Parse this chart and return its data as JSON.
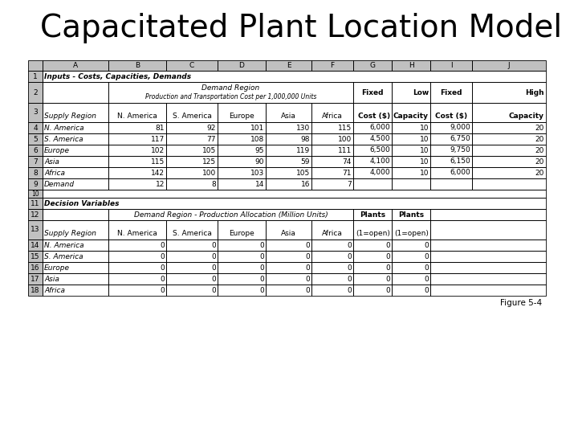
{
  "title": "Capacitated Plant Location Model",
  "figure_label": "Figure 5-4",
  "section1_label": "Inputs - Costs, Capacities, Demands",
  "section2_label": "Decision Variables",
  "demand_region_label": "Demand Region",
  "prod_trans_label": "Production and Transportation Cost per 1,000,000 Units",
  "alloc_label": "Demand Region - Production Allocation (Million Units)",
  "col_letters": [
    "A",
    "B",
    "C",
    "D",
    "E",
    "F",
    "G",
    "H",
    "I",
    "J"
  ],
  "row2_g": "Fixed",
  "row2_h": "Low",
  "row2_i": "Fixed",
  "row2_j": "High",
  "row3": [
    "Supply Region",
    "N. America",
    "S. America",
    "Europe",
    "Asia",
    "Africa",
    "Cost ($)",
    "Capacity",
    "Cost ($)",
    "Capacity"
  ],
  "row4": [
    "N. America",
    "81",
    "92",
    "101",
    "130",
    "115",
    "6,000",
    "10",
    "9,000",
    "20"
  ],
  "row5": [
    "S. America",
    "117",
    "77",
    "108",
    "98",
    "100",
    "4,500",
    "10",
    "6,750",
    "20"
  ],
  "row6": [
    "Europe",
    "102",
    "105",
    "95",
    "119",
    "111",
    "6,500",
    "10",
    "9,750",
    "20"
  ],
  "row7": [
    "Asia",
    "115",
    "125",
    "90",
    "59",
    "74",
    "4,100",
    "10",
    "6,150",
    "20"
  ],
  "row8": [
    "Africa",
    "142",
    "100",
    "103",
    "105",
    "71",
    "4,000",
    "10",
    "6,000",
    "20"
  ],
  "row9": [
    "Demand",
    "12",
    "8",
    "14",
    "16",
    "7",
    "",
    "",
    "",
    ""
  ],
  "row12_g": "Plants",
  "row12_h": "Plants",
  "row13": [
    "Supply Region",
    "N. America",
    "S. America",
    "Europe",
    "Asia",
    "Africa",
    "(1=open)",
    "(1=open)",
    "",
    ""
  ],
  "row14": [
    "N. America",
    "0",
    "0",
    "0",
    "0",
    "0",
    "0",
    "0",
    "",
    ""
  ],
  "row15": [
    "S. America",
    "0",
    "0",
    "0",
    "0",
    "0",
    "0",
    "0",
    "",
    ""
  ],
  "row16": [
    "Europe",
    "0",
    "0",
    "0",
    "0",
    "0",
    "0",
    "0",
    "",
    ""
  ],
  "row17": [
    "Asia",
    "0",
    "0",
    "0",
    "0",
    "0",
    "0",
    "0",
    "",
    ""
  ],
  "row18": [
    "Africa",
    "0",
    "0",
    "0",
    "0",
    "0",
    "0",
    "0",
    "",
    ""
  ],
  "bg_color": "#ffffff",
  "border_color": "#000000",
  "gray_bg": "#c0c0c0",
  "title_fontsize": 28,
  "table_fontsize": 6.5,
  "header_fontsize": 6.5,
  "fig_label_fontsize": 7.5
}
